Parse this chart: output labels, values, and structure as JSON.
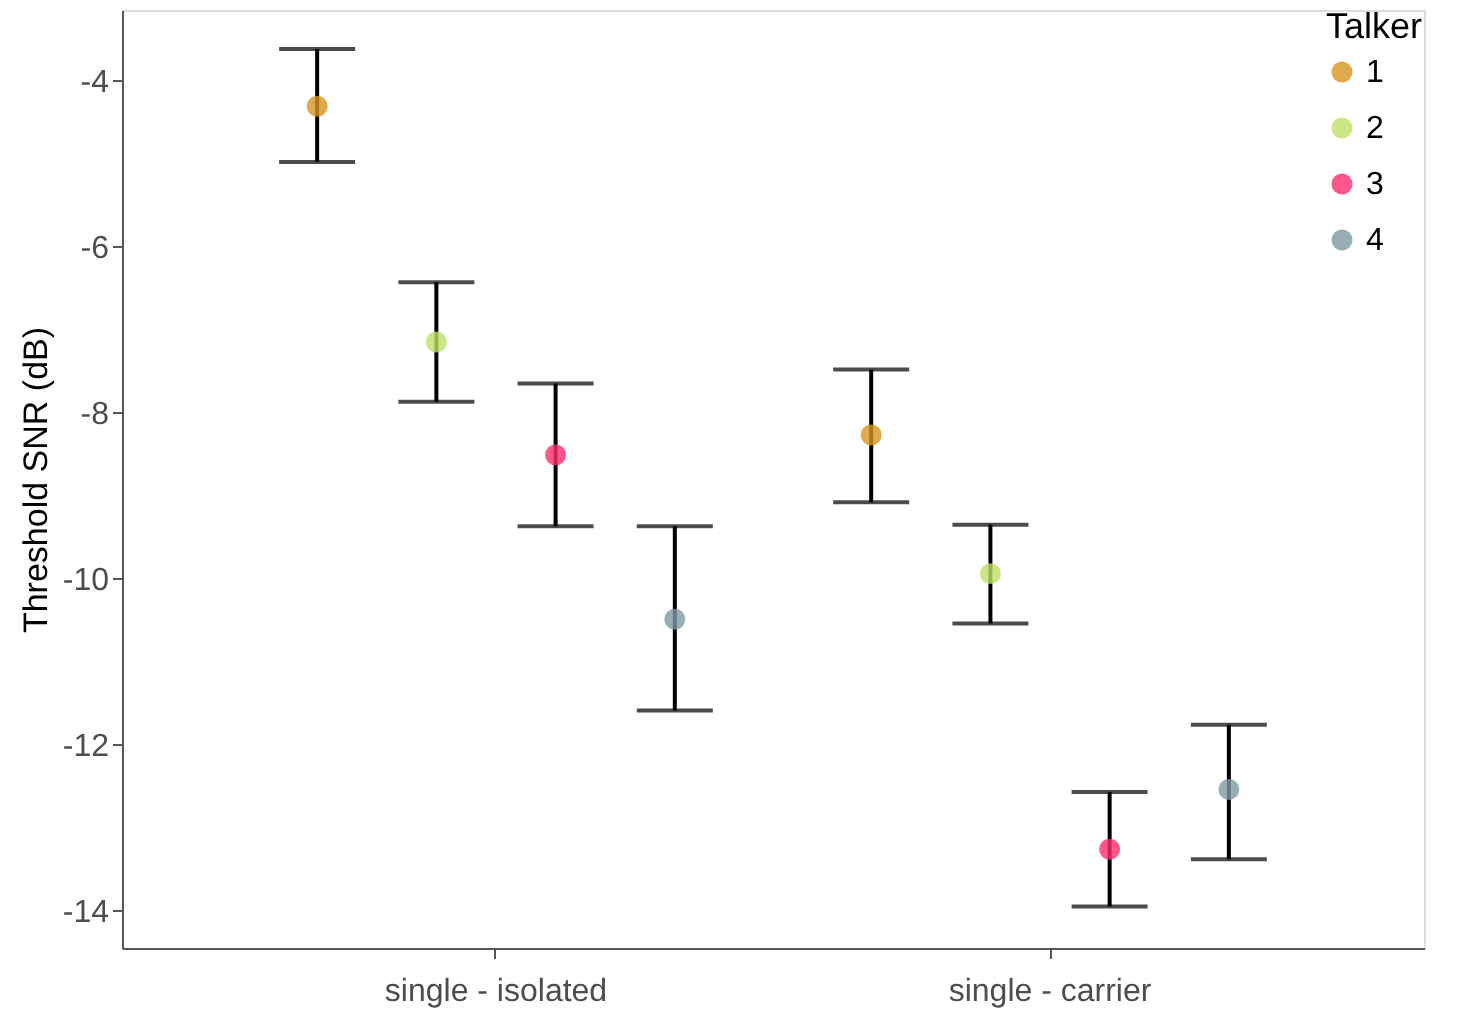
{
  "chart_data": {
    "type": "scatter",
    "ylabel": "Threshold SNR (dB)",
    "legend_title": "Talker",
    "categories": [
      "single - isolated",
      "single - carrier"
    ],
    "series": [
      {
        "name": "1",
        "color": "#d8951f",
        "values": [
          -4.31,
          -8.27
        ],
        "errors": [
          [
            -4.98,
            -3.62
          ],
          [
            -9.08,
            -7.48
          ]
        ]
      },
      {
        "name": "2",
        "color": "#bfe066",
        "values": [
          -7.15,
          -9.94
        ],
        "errors": [
          [
            -7.87,
            -6.43
          ],
          [
            -10.54,
            -9.35
          ]
        ]
      },
      {
        "name": "3",
        "color": "#ff2d6e",
        "values": [
          -8.51,
          -13.26
        ],
        "errors": [
          [
            -9.37,
            -7.65
          ],
          [
            -13.95,
            -12.57
          ]
        ]
      },
      {
        "name": "4",
        "color": "#7e98a4",
        "values": [
          -10.49,
          -12.54
        ],
        "errors": [
          [
            -11.59,
            -9.37
          ],
          [
            -13.38,
            -11.76
          ]
        ]
      }
    ],
    "ylim": [
      -14.45,
      -3.15
    ],
    "yticks": [
      -14,
      -12,
      -10,
      -8,
      -6,
      -4
    ],
    "grid": false,
    "legend": "top right",
    "marker": "circle"
  }
}
